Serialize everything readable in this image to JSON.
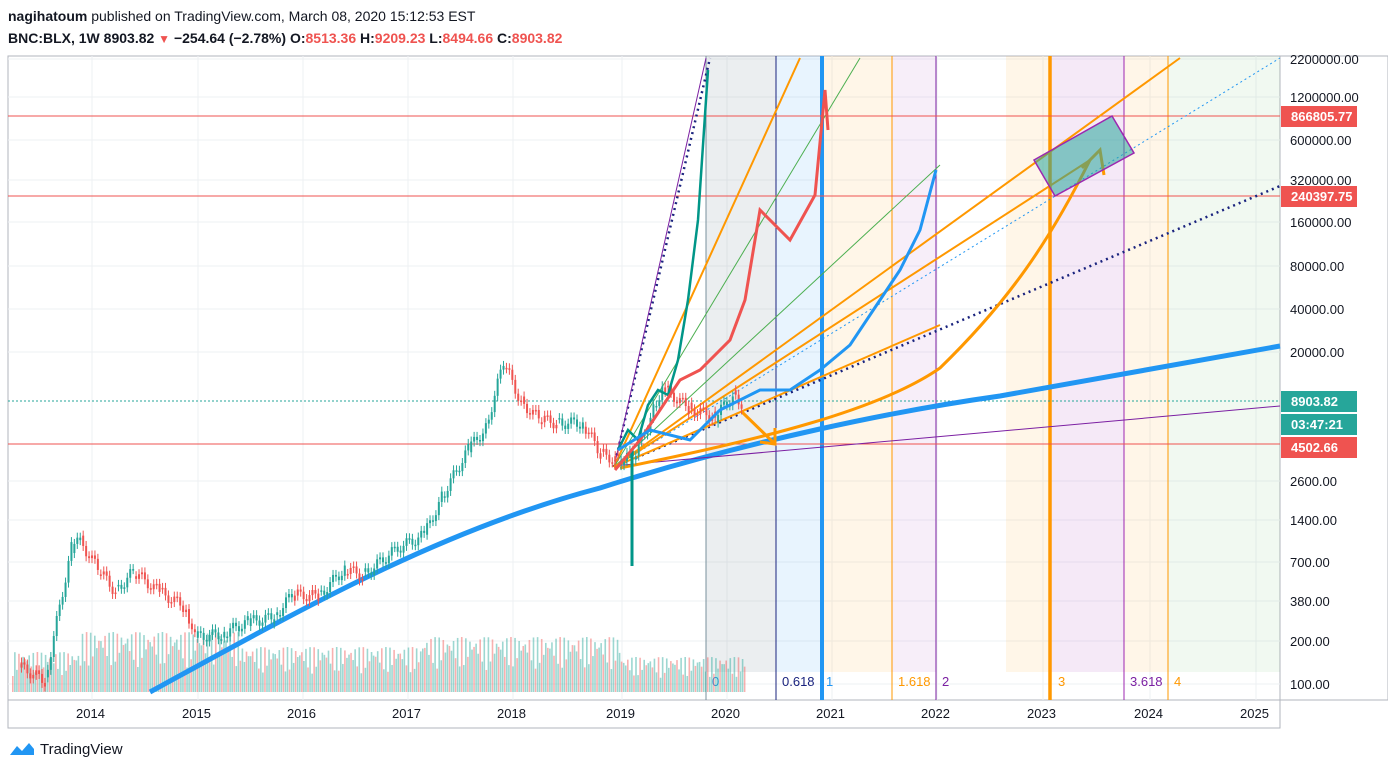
{
  "header": {
    "author": "nagihatoum",
    "published_text": "published on TradingView.com, March 08, 2020 15:12:53 EST",
    "symbol": "BNC:BLX, 1W",
    "last": "8903.82",
    "change": "−254.64 (−2.78%)",
    "o_label": "O:",
    "o": "8513.36",
    "h_label": "H:",
    "h": "9209.23",
    "l_label": "L:",
    "l": "8494.66",
    "c_label": "C:",
    "c": "8903.82"
  },
  "footer": {
    "brand": "TradingView",
    "icon": "tradingview-logo-icon"
  },
  "colors": {
    "up": "#26a69a",
    "down": "#ef5350",
    "orange": "#ff9800",
    "blue": "#2196f3",
    "purple": "#7b1fa2",
    "navy": "#1a237e",
    "green": "#4caf50",
    "teal": "#26a69a"
  },
  "chart_data": {
    "type": "candlestick",
    "yscale": "log",
    "x_ticks": [
      "2014",
      "2015",
      "2016",
      "2017",
      "2018",
      "2019",
      "2020",
      "2021",
      "2022",
      "2023",
      "2024",
      "2025"
    ],
    "y_ticks": [
      "2200000.00",
      "1200000.00",
      "600000.00",
      "320000.00",
      "160000.00",
      "80000.00",
      "40000.00",
      "20000.00",
      "2600.00",
      "1400.00",
      "700.00",
      "380.00",
      "200.00",
      "100.00"
    ],
    "price_labels": [
      {
        "value": "866805.77",
        "color": "#ef5350"
      },
      {
        "value": "240397.75",
        "color": "#ef5350"
      },
      {
        "value": "8903.82",
        "color": "#26a69a"
      },
      {
        "value": "03:47:21",
        "color": "#26a69a"
      },
      {
        "value": "4502.66",
        "color": "#ef5350"
      }
    ],
    "horizontal_lines": [
      866805.77,
      240397.75,
      4502.66
    ],
    "current_price": 8903.82,
    "fib_time_labels": [
      {
        "text": "0",
        "color": "#2196f3"
      },
      {
        "text": "0.618",
        "color": "#1a237e"
      },
      {
        "text": "1",
        "color": "#2196f3"
      },
      {
        "text": "1.618",
        "color": "#ff9800"
      },
      {
        "text": "2",
        "color": "#7b1fa2"
      },
      {
        "text": "3",
        "color": "#ff9800"
      },
      {
        "text": "3.618",
        "color": "#7b1fa2"
      },
      {
        "text": "4",
        "color": "#ff9800"
      }
    ],
    "price_series": [
      [
        "2013-05",
        140
      ],
      [
        "2013-08",
        110
      ],
      [
        "2013-11",
        900
      ],
      [
        "2013-12",
        1000
      ],
      [
        "2014-02",
        650
      ],
      [
        "2014-04",
        450
      ],
      [
        "2014-06",
        620
      ],
      [
        "2014-09",
        450
      ],
      [
        "2014-12",
        350
      ],
      [
        "2015-01",
        220
      ],
      [
        "2015-04",
        230
      ],
      [
        "2015-07",
        280
      ],
      [
        "2015-10",
        300
      ],
      [
        "2015-12",
        430
      ],
      [
        "2016-03",
        420
      ],
      [
        "2016-06",
        650
      ],
      [
        "2016-08",
        580
      ],
      [
        "2016-12",
        900
      ],
      [
        "2017-03",
        1100
      ],
      [
        "2017-05",
        2000
      ],
      [
        "2017-08",
        4300
      ],
      [
        "2017-10",
        6000
      ],
      [
        "2017-12",
        17000
      ],
      [
        "2018-02",
        9000
      ],
      [
        "2018-04",
        7000
      ],
      [
        "2018-06",
        6500
      ],
      [
        "2018-09",
        6500
      ],
      [
        "2018-11",
        4000
      ],
      [
        "2019-01",
        3600
      ],
      [
        "2019-03",
        4000
      ],
      [
        "2019-05",
        8000
      ],
      [
        "2019-06",
        11500
      ],
      [
        "2019-09",
        8200
      ],
      [
        "2019-12",
        7200
      ],
      [
        "2020-02",
        10000
      ],
      [
        "2020-03",
        8903.82
      ]
    ],
    "volume_note": "weekly volume bars"
  }
}
